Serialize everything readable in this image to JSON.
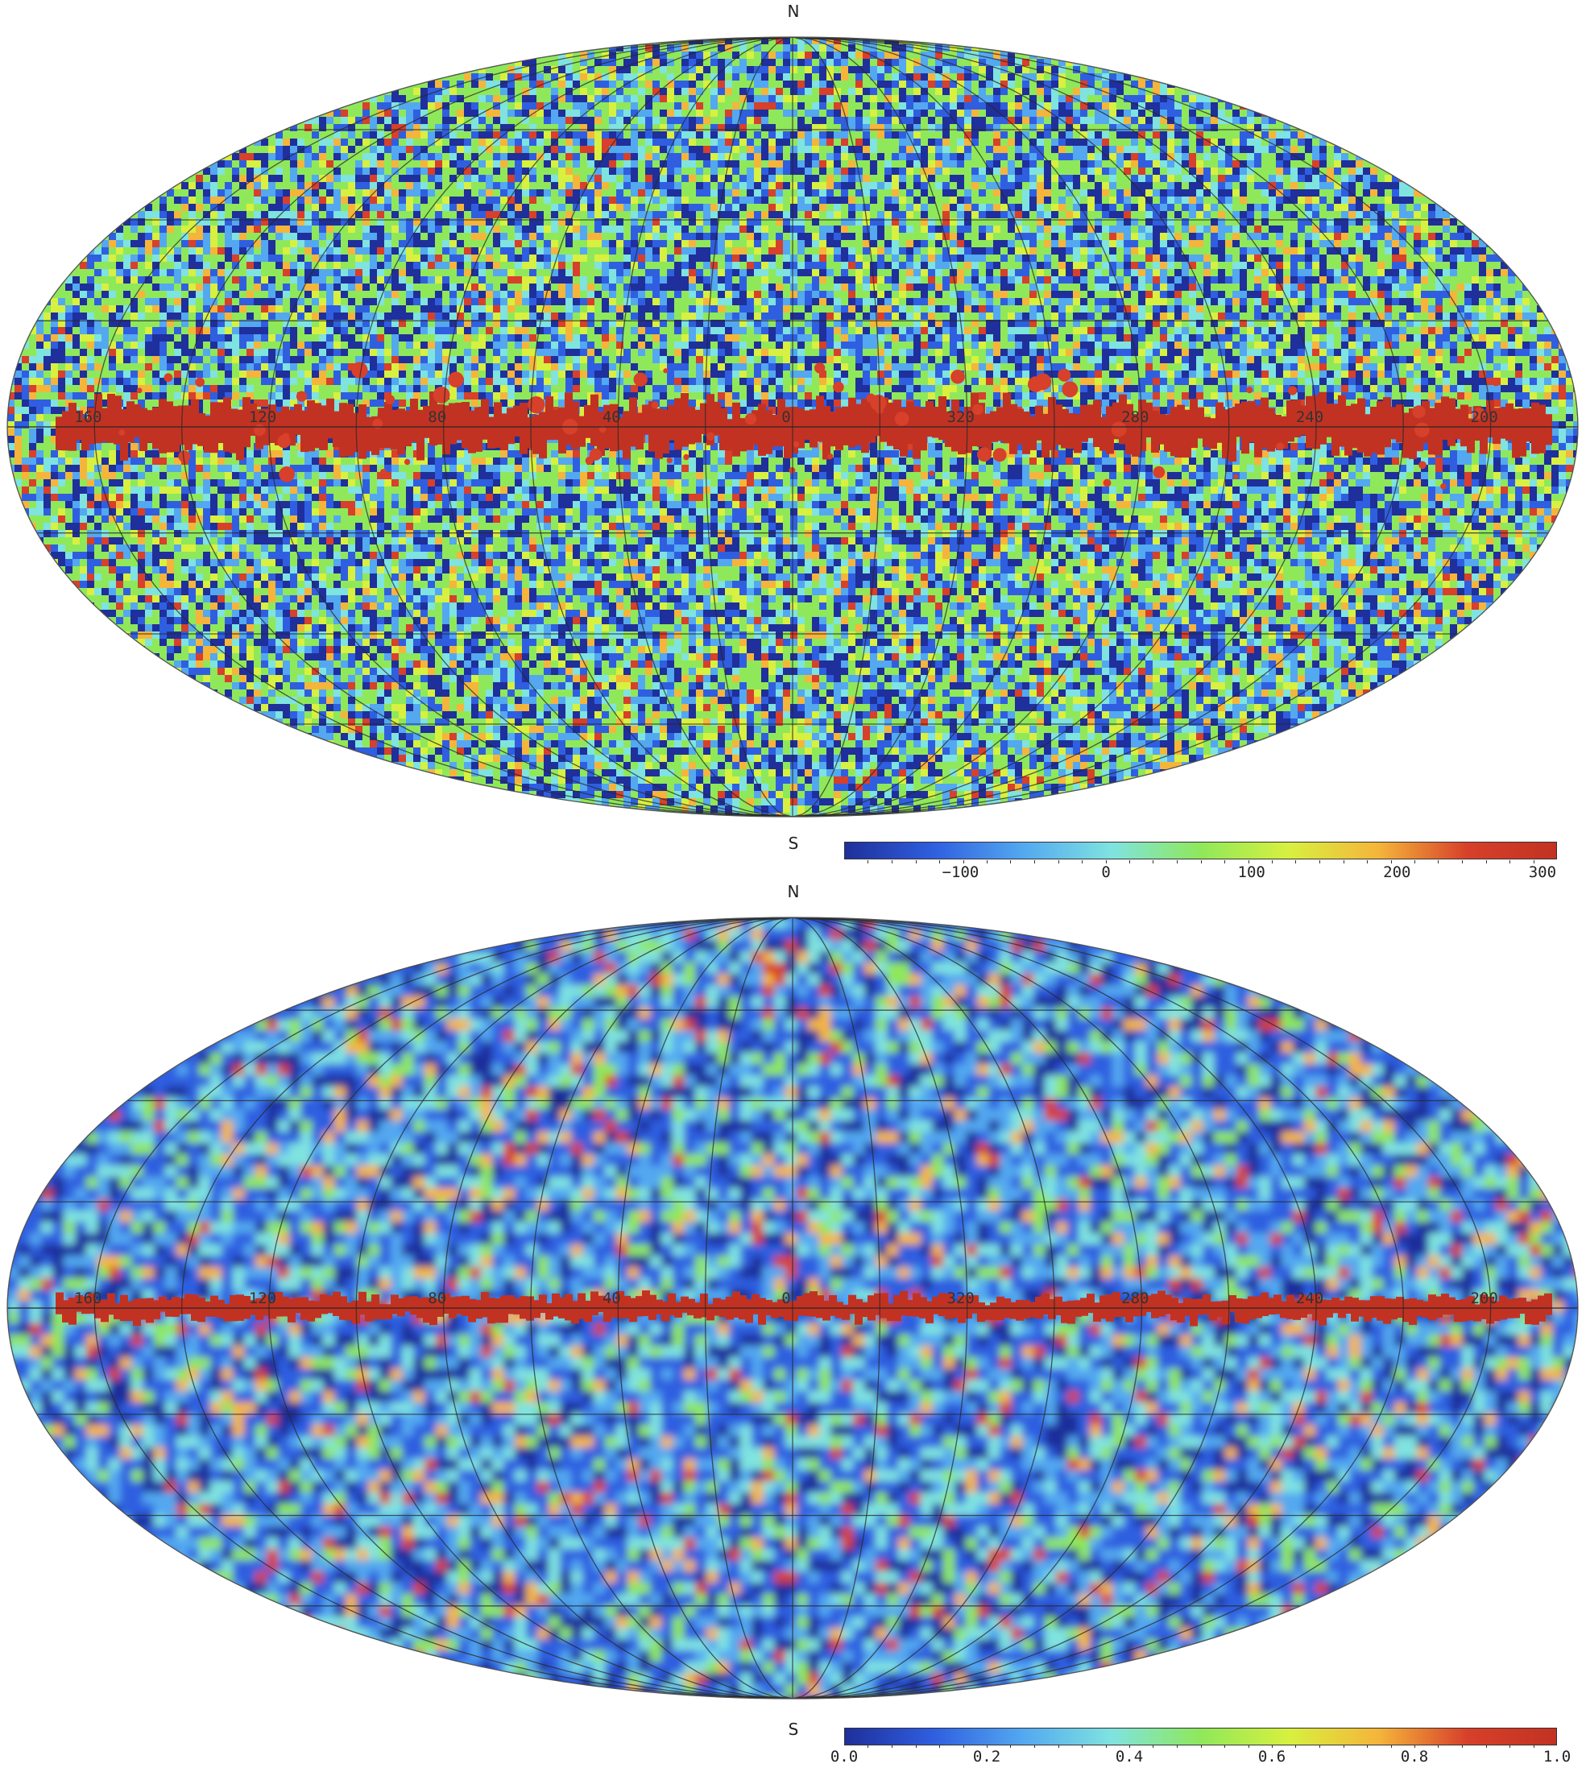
{
  "maps": [
    {
      "pole_north": "N",
      "pole_south": "S",
      "lon_labels": [
        "160",
        "120",
        "80",
        "40",
        "0",
        "320",
        "280",
        "240",
        "200"
      ],
      "colorbar": {
        "min": -180,
        "max": 310,
        "ticks": [
          {
            "value": -100,
            "label": "−100"
          },
          {
            "value": 0,
            "label": "0"
          },
          {
            "value": 100,
            "label": "100"
          },
          {
            "value": 200,
            "label": "200"
          },
          {
            "value": 300,
            "label": "300"
          }
        ],
        "colormap": [
          "#1f2f9b",
          "#2f5fe0",
          "#53a8f0",
          "#7fe3e0",
          "#8fe85a",
          "#d8f03f",
          "#f5b53a",
          "#d7402a",
          "#c23222"
        ]
      },
      "style": "fine-noise"
    },
    {
      "pole_north": "N",
      "pole_south": "S",
      "lon_labels": [
        "160",
        "120",
        "80",
        "40",
        "0",
        "320",
        "280",
        "240",
        "200"
      ],
      "colorbar": {
        "min": 0.0,
        "max": 1.0,
        "ticks": [
          {
            "value": 0.0,
            "label": "0.0"
          },
          {
            "value": 0.2,
            "label": "0.2"
          },
          {
            "value": 0.4,
            "label": "0.4"
          },
          {
            "value": 0.6,
            "label": "0.6"
          },
          {
            "value": 0.8,
            "label": "0.8"
          },
          {
            "value": 1.0,
            "label": "1.0"
          }
        ],
        "colormap": [
          "#1f2f9b",
          "#2f5fe0",
          "#53a8f0",
          "#7fe3e0",
          "#8fe85a",
          "#d8f03f",
          "#f5b53a",
          "#d7402a",
          "#c23222"
        ]
      },
      "style": "smooth-blobs"
    }
  ]
}
